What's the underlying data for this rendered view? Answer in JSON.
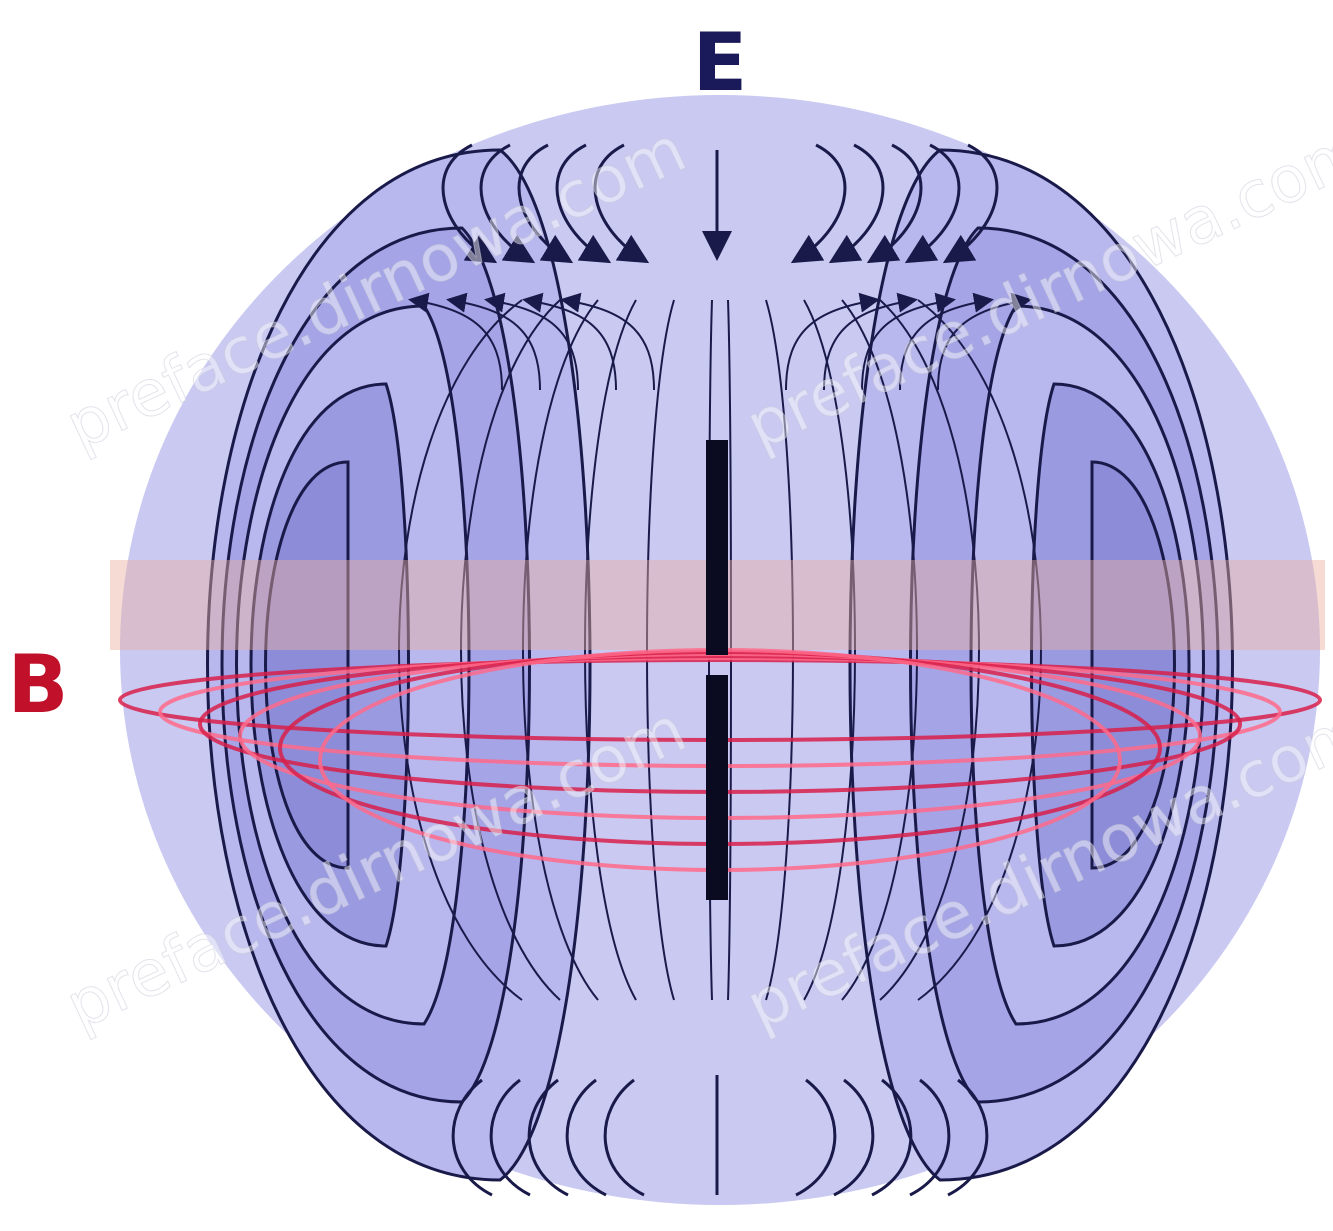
{
  "labels": {
    "e": "E",
    "b": "B"
  },
  "watermarks": [
    "preface.dirnowa.com",
    "preface.dirnowa.com",
    "preface.dirnowa.com",
    "preface.dirnowa.com"
  ]
}
